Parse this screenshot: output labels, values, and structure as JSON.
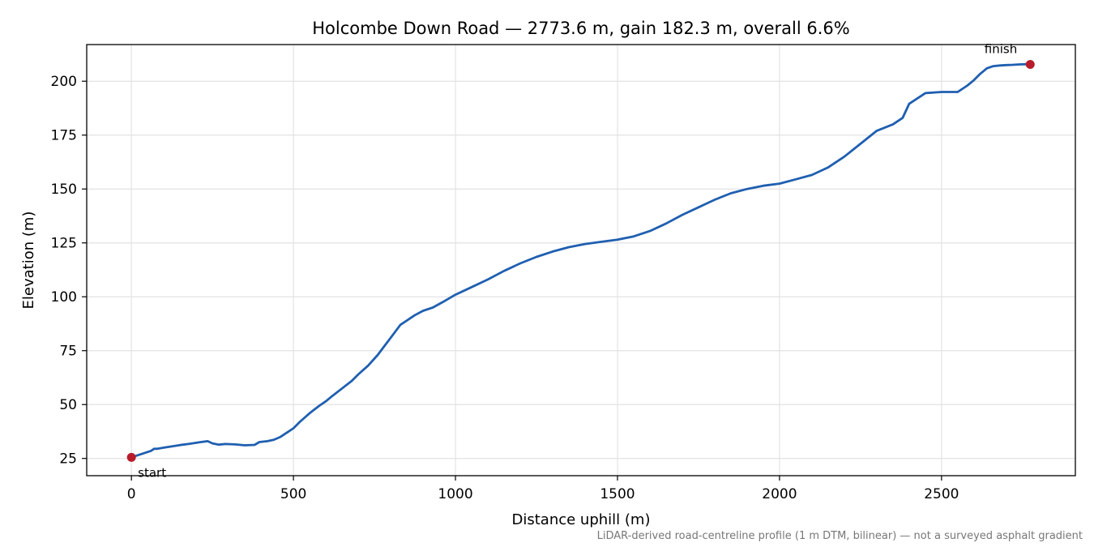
{
  "chart_data": {
    "type": "line",
    "title": "Holcombe Down Road — 2773.6 m, gain 182.3 m, overall 6.6%",
    "xlabel": "Distance uphill (m)",
    "ylabel": "Elevation (m)",
    "xlim": [
      -138,
      2913
    ],
    "ylim": [
      17,
      217
    ],
    "xticks": [
      0,
      500,
      1000,
      1500,
      2000,
      2500
    ],
    "yticks": [
      25,
      50,
      75,
      100,
      125,
      150,
      175,
      200
    ],
    "grid": true,
    "line_color": "#1f5fb0",
    "marker_color": "#b81c2b",
    "series": [
      {
        "x": [
          0,
          20,
          40,
          60,
          70,
          80,
          100,
          120,
          150,
          180,
          210,
          235,
          250,
          270,
          290,
          320,
          350,
          380,
          395,
          420,
          440,
          460,
          480,
          500,
          520,
          550,
          580,
          600,
          620,
          650,
          680,
          700,
          730,
          760,
          780,
          800,
          830,
          850,
          860,
          875,
          900,
          930,
          960,
          1000,
          1050,
          1100,
          1150,
          1200,
          1250,
          1300,
          1350,
          1400,
          1450,
          1500,
          1550,
          1600,
          1650,
          1700,
          1750,
          1800,
          1850,
          1900,
          1950,
          2000,
          2050,
          2100,
          2150,
          2200,
          2250,
          2300,
          2350,
          2380,
          2400,
          2450,
          2500,
          2550,
          2580,
          2600,
          2620,
          2640,
          2660,
          2680,
          2700,
          2720,
          2740,
          2760,
          2773.6
        ],
        "y": [
          25.5,
          26.5,
          27.5,
          28.5,
          29.5,
          29.5,
          30,
          30.5,
          31.2,
          31.8,
          32.5,
          33,
          32,
          31.4,
          31.7,
          31.5,
          31.1,
          31.3,
          32.6,
          33,
          33.7,
          35,
          37,
          39,
          42,
          46,
          49.5,
          51.5,
          54,
          57.5,
          61,
          64,
          68,
          73,
          77,
          81,
          87,
          89,
          90,
          91.5,
          93.5,
          95,
          97.5,
          101,
          104.5,
          108,
          112,
          115.5,
          118.5,
          121,
          123,
          124.5,
          125.5,
          126.5,
          128,
          130.5,
          134,
          138,
          141.5,
          145,
          148,
          150,
          151.5,
          152.5,
          154.5,
          156.5,
          160,
          165,
          171,
          177,
          180,
          183,
          189.5,
          194.5,
          195,
          195,
          198,
          200.5,
          203.5,
          206,
          207,
          207.3,
          207.5,
          207.6,
          207.8,
          207.9,
          207.8
        ]
      }
    ],
    "markers": [
      {
        "label": "start",
        "x": 0,
        "y": 25.5
      },
      {
        "label": "finish",
        "x": 2773.6,
        "y": 207.8
      }
    ],
    "footnote": "LiDAR-derived road-centreline profile (1 m DTM, bilinear) — not a surveyed asphalt gradient"
  }
}
